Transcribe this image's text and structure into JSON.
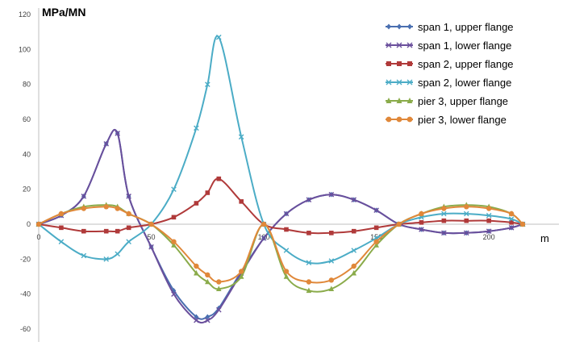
{
  "chart_data": {
    "type": "line",
    "title": "",
    "ylabel": "MPa/MN",
    "xlabel": "m",
    "xlim": [
      0,
      220
    ],
    "ylim": [
      -60,
      120
    ],
    "x_ticks": [
      0,
      50,
      100,
      150,
      200
    ],
    "y_ticks": [
      -60,
      -40,
      -20,
      0,
      20,
      40,
      60,
      80,
      100,
      120
    ],
    "grid": false,
    "legend_position": "top-right",
    "x": [
      0,
      10,
      20,
      30,
      35,
      40,
      50,
      60,
      70,
      75,
      80,
      90,
      100,
      110,
      120,
      130,
      140,
      150,
      160,
      170,
      180,
      190,
      200,
      210,
      215
    ],
    "series": [
      {
        "name": "span 1, upper flange",
        "color": "#4a6fb0",
        "marker": "diamond",
        "values": [
          0,
          5,
          16,
          46,
          52,
          16,
          -13,
          -38,
          -53,
          -53,
          -48,
          -27,
          -8,
          6,
          14,
          17,
          14,
          8,
          0,
          -3,
          -5,
          -5,
          -4,
          -2,
          0
        ]
      },
      {
        "name": "span 1, lower flange",
        "color": "#6a4f9c",
        "marker": "x",
        "values": [
          0,
          5,
          16,
          46,
          52,
          16,
          -13,
          -40,
          -55,
          -55,
          -49,
          -28,
          -8,
          6,
          14,
          17,
          14,
          8,
          0,
          -3,
          -5,
          -5,
          -4,
          -2,
          0
        ]
      },
      {
        "name": "span 2, upper flange",
        "color": "#b03a3a",
        "marker": "square",
        "values": [
          0,
          -2,
          -4,
          -4,
          -4,
          -2,
          0,
          4,
          12,
          18,
          26,
          13,
          0,
          -3,
          -5,
          -5,
          -4,
          -2,
          0,
          1,
          2,
          2,
          2,
          1,
          0
        ]
      },
      {
        "name": "span 2, lower flange",
        "color": "#4bacc6",
        "marker": "x",
        "values": [
          0,
          -10,
          -18,
          -20,
          -17,
          -10,
          0,
          20,
          55,
          80,
          107,
          50,
          0,
          -15,
          -22,
          -21,
          -15,
          -8,
          0,
          4,
          6,
          6,
          5,
          3,
          0
        ]
      },
      {
        "name": "pier 3, upper flange",
        "color": "#8aab4a",
        "marker": "triangle",
        "values": [
          0,
          6,
          10,
          11,
          10,
          6,
          0,
          -12,
          -28,
          -33,
          -37,
          -30,
          0,
          -30,
          -38,
          -37,
          -28,
          -12,
          0,
          6,
          10,
          11,
          10,
          6,
          0
        ]
      },
      {
        "name": "pier 3, lower flange",
        "color": "#e0883a",
        "marker": "circle",
        "values": [
          0,
          6,
          9,
          10,
          9,
          6,
          0,
          -10,
          -24,
          -29,
          -33,
          -27,
          0,
          -27,
          -33,
          -32,
          -24,
          -10,
          0,
          6,
          9,
          10,
          9,
          6,
          0
        ]
      }
    ]
  }
}
